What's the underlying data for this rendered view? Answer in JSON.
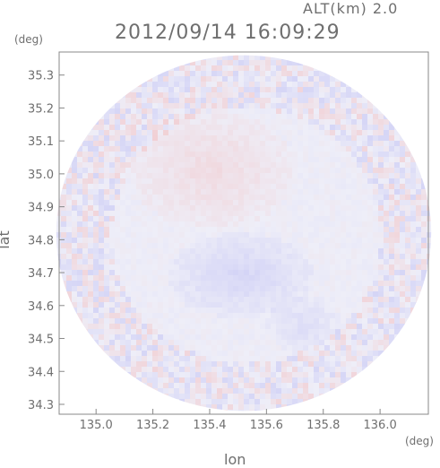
{
  "header": {
    "alt_label": "ALT(km) 2.0",
    "datetime": "2012/09/14 16:09:29"
  },
  "axes": {
    "x_label": "lon",
    "y_label": "lat",
    "x_unit": "(deg)",
    "y_unit": "(deg)"
  },
  "chart_data": {
    "type": "heatmap",
    "title": "2012/09/14 16:09:29",
    "subtitle": "ALT(km) 2.0",
    "xlabel": "lon",
    "ylabel": "lat",
    "x_unit": "(deg)",
    "y_unit": "(deg)",
    "xlim": [
      134.87,
      136.17
    ],
    "ylim": [
      34.27,
      35.37
    ],
    "x_ticks": [
      135.0,
      135.2,
      135.4,
      135.6,
      135.8,
      136.0
    ],
    "x_tick_labels": [
      "135.0",
      "135.2",
      "135.4",
      "135.6",
      "135.8",
      "136.0"
    ],
    "y_ticks": [
      34.3,
      34.4,
      34.5,
      34.6,
      34.7,
      34.8,
      34.9,
      35.0,
      35.1,
      35.2,
      35.3
    ],
    "y_tick_labels": [
      "34.3",
      "34.4",
      "34.5",
      "34.6",
      "34.7",
      "34.8",
      "34.9",
      "35.0",
      "35.1",
      "35.2",
      "35.3"
    ],
    "domain": {
      "shape": "circle",
      "center": [
        135.52,
        34.82
      ],
      "radius_lon": 0.66,
      "radius_lat": 0.54
    },
    "grid": false,
    "colors": {
      "positive": "#f4b8b8",
      "negative": "#b8b8f4",
      "zero": "#eeeef8",
      "axis": "#888888"
    },
    "regions": [
      {
        "sign": "positive",
        "center": [
          135.4,
          35.02
        ],
        "radius": [
          0.22,
          0.14
        ],
        "intensity": 0.35
      },
      {
        "sign": "negative",
        "center": [
          135.5,
          34.7
        ],
        "radius": [
          0.2,
          0.1
        ],
        "intensity": 0.45
      },
      {
        "sign": "negative",
        "center": [
          135.72,
          34.55
        ],
        "radius": [
          0.1,
          0.07
        ],
        "intensity": 0.3
      }
    ]
  }
}
